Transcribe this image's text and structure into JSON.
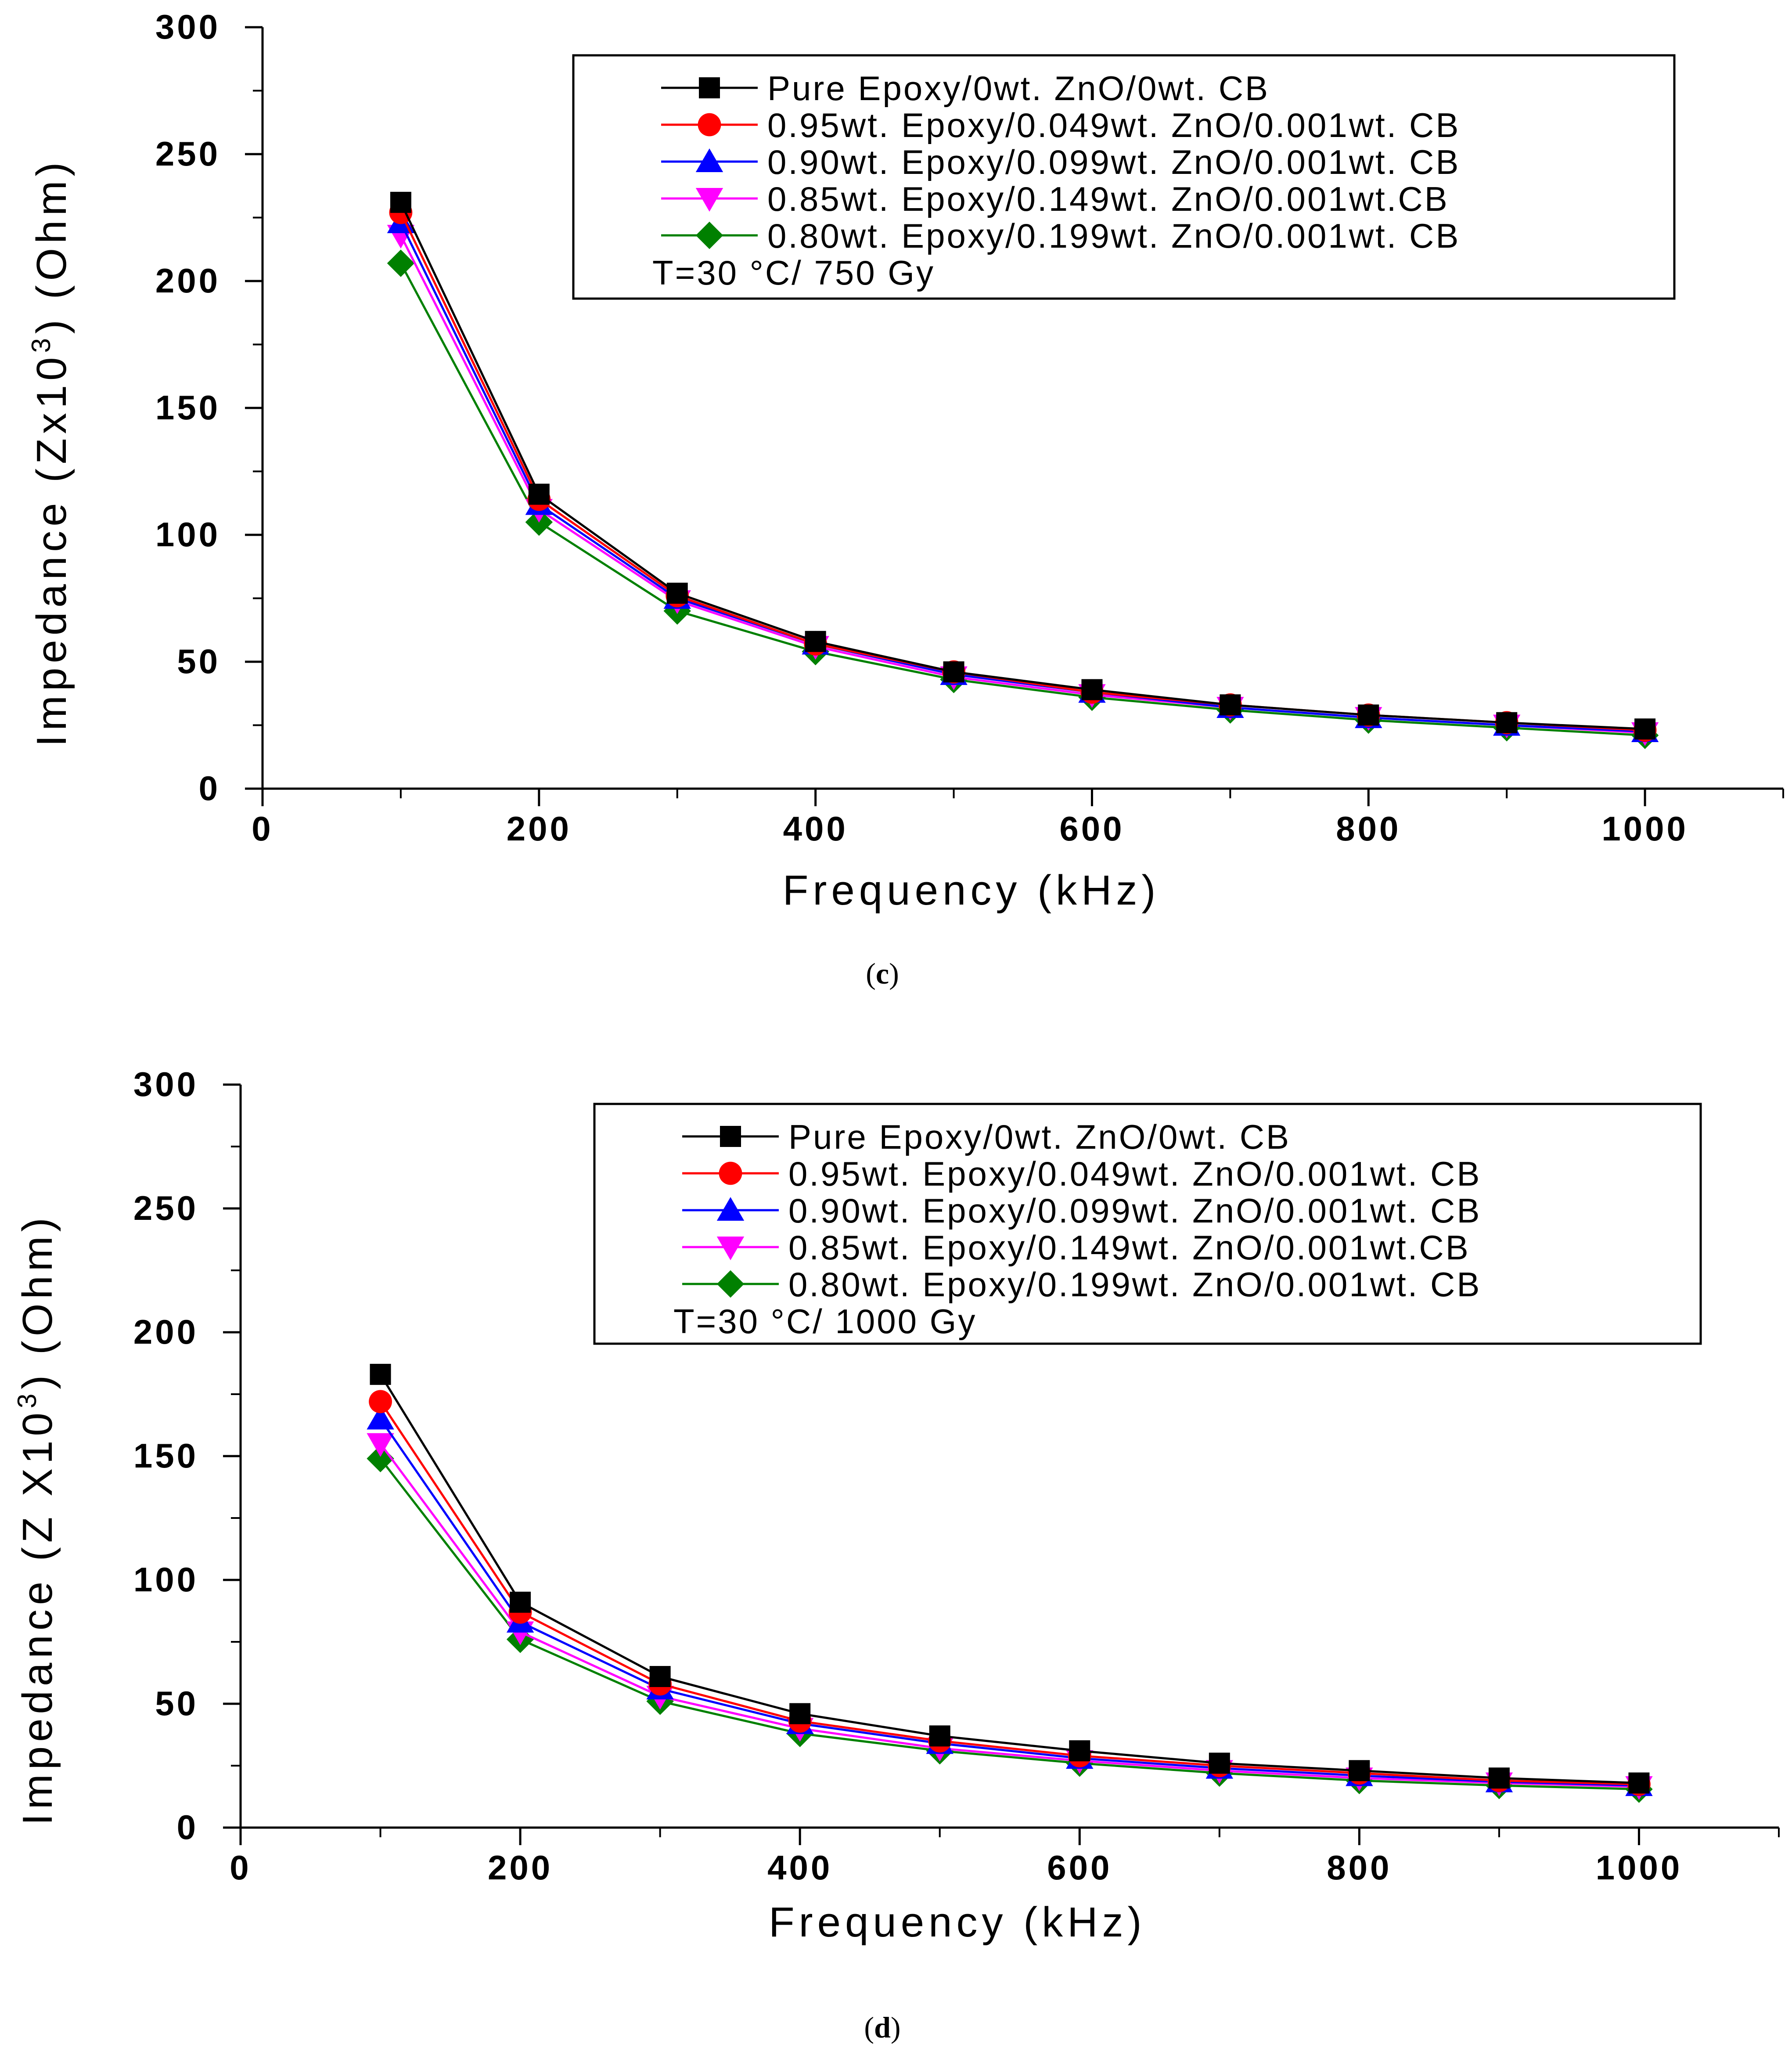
{
  "chart_data": [
    {
      "type": "line",
      "panel": "c",
      "caption_open": "(",
      "caption_letter": "c",
      "caption_close": ")",
      "xlabel": "Frequency  (kHz)",
      "ylabel_prefix": "Impedance  (Zx10",
      "ylabel_exp": "3",
      "ylabel_suffix": ")  (Ohm)",
      "xlim": [
        0,
        1100
      ],
      "ylim": [
        0,
        300
      ],
      "xticks": [
        0,
        200,
        400,
        600,
        800,
        1000
      ],
      "yticks": [
        0,
        50,
        100,
        150,
        200,
        250,
        300
      ],
      "annotation": "T=30 °C/ 750 Gy",
      "legend_position": "top-right",
      "x": [
        100,
        200,
        300,
        400,
        500,
        600,
        700,
        800,
        900,
        1000
      ],
      "series": [
        {
          "name": "Pure Epoxy/0wt. ZnO/0wt. CB",
          "color": "#000000",
          "marker": "square",
          "values": [
            231,
            116,
            77,
            58,
            46,
            39,
            33,
            29,
            26,
            23.5
          ]
        },
        {
          "name": "0.95wt. Epoxy/0.049wt. ZnO/0.001wt. CB",
          "color": "#ff0000",
          "marker": "circle",
          "values": [
            227,
            114,
            76,
            57,
            46,
            38,
            33,
            29,
            26,
            23
          ]
        },
        {
          "name": "0.90wt. Epoxy/0.099wt. ZnO/0.001wt. CB",
          "color": "#0000ff",
          "marker": "triangle-up",
          "values": [
            223,
            112,
            75,
            57,
            45,
            38,
            32,
            28,
            25,
            22.5
          ]
        },
        {
          "name": "0.85wt. Epoxy/0.149wt. ZnO/0.001wt.CB",
          "color": "#ff00ff",
          "marker": "triangle-down",
          "values": [
            218,
            110,
            74,
            56,
            44,
            37,
            32,
            28,
            25,
            22
          ]
        },
        {
          "name": "0.80wt. Epoxy/0.199wt. ZnO/0.001wt. CB",
          "color": "#008000",
          "marker": "diamond",
          "values": [
            207,
            105,
            70,
            54,
            43,
            36,
            31,
            27,
            24,
            21
          ]
        }
      ]
    },
    {
      "type": "line",
      "panel": "d",
      "caption_open": "(",
      "caption_letter": "d",
      "caption_close": ")",
      "xlabel": "Frequency  (kHz)",
      "ylabel_prefix": "Impedance  (Z X10",
      "ylabel_exp": "3",
      "ylabel_suffix": ")  (Ohm)",
      "xlim": [
        0,
        1100
      ],
      "ylim": [
        0,
        300
      ],
      "xticks": [
        0,
        200,
        400,
        600,
        800,
        1000
      ],
      "yticks": [
        0,
        50,
        100,
        150,
        200,
        250,
        300
      ],
      "annotation": "T=30 °C/ 1000 Gy",
      "legend_position": "top-right",
      "x": [
        100,
        200,
        300,
        400,
        500,
        600,
        700,
        800,
        900,
        1000
      ],
      "series": [
        {
          "name": "Pure Epoxy/0wt. ZnO/0wt. CB",
          "color": "#000000",
          "marker": "square",
          "values": [
            183,
            91,
            61,
            46,
            37,
            31,
            26,
            23,
            20,
            18
          ]
        },
        {
          "name": "0.95wt. Epoxy/0.049wt. ZnO/0.001wt. CB",
          "color": "#ff0000",
          "marker": "circle",
          "values": [
            172,
            87,
            58,
            43,
            35,
            29,
            25,
            22,
            19,
            17.5
          ]
        },
        {
          "name": "0.90wt. Epoxy/0.099wt. ZnO/0.001wt. CB",
          "color": "#0000ff",
          "marker": "triangle-up",
          "values": [
            165,
            83,
            56,
            42,
            34,
            28,
            24,
            21,
            18.5,
            17
          ]
        },
        {
          "name": "0.85wt. Epoxy/0.149wt. ZnO/0.001wt.CB",
          "color": "#ff00ff",
          "marker": "triangle-down",
          "values": [
            155,
            79,
            53,
            40,
            32,
            27,
            23,
            20,
            18,
            16.5
          ]
        },
        {
          "name": "0.80wt. Epoxy/0.199wt. ZnO/0.001wt. CB",
          "color": "#008000",
          "marker": "diamond",
          "values": [
            149,
            76,
            51,
            38,
            31,
            26,
            22,
            19,
            17,
            15.5
          ]
        }
      ]
    }
  ]
}
